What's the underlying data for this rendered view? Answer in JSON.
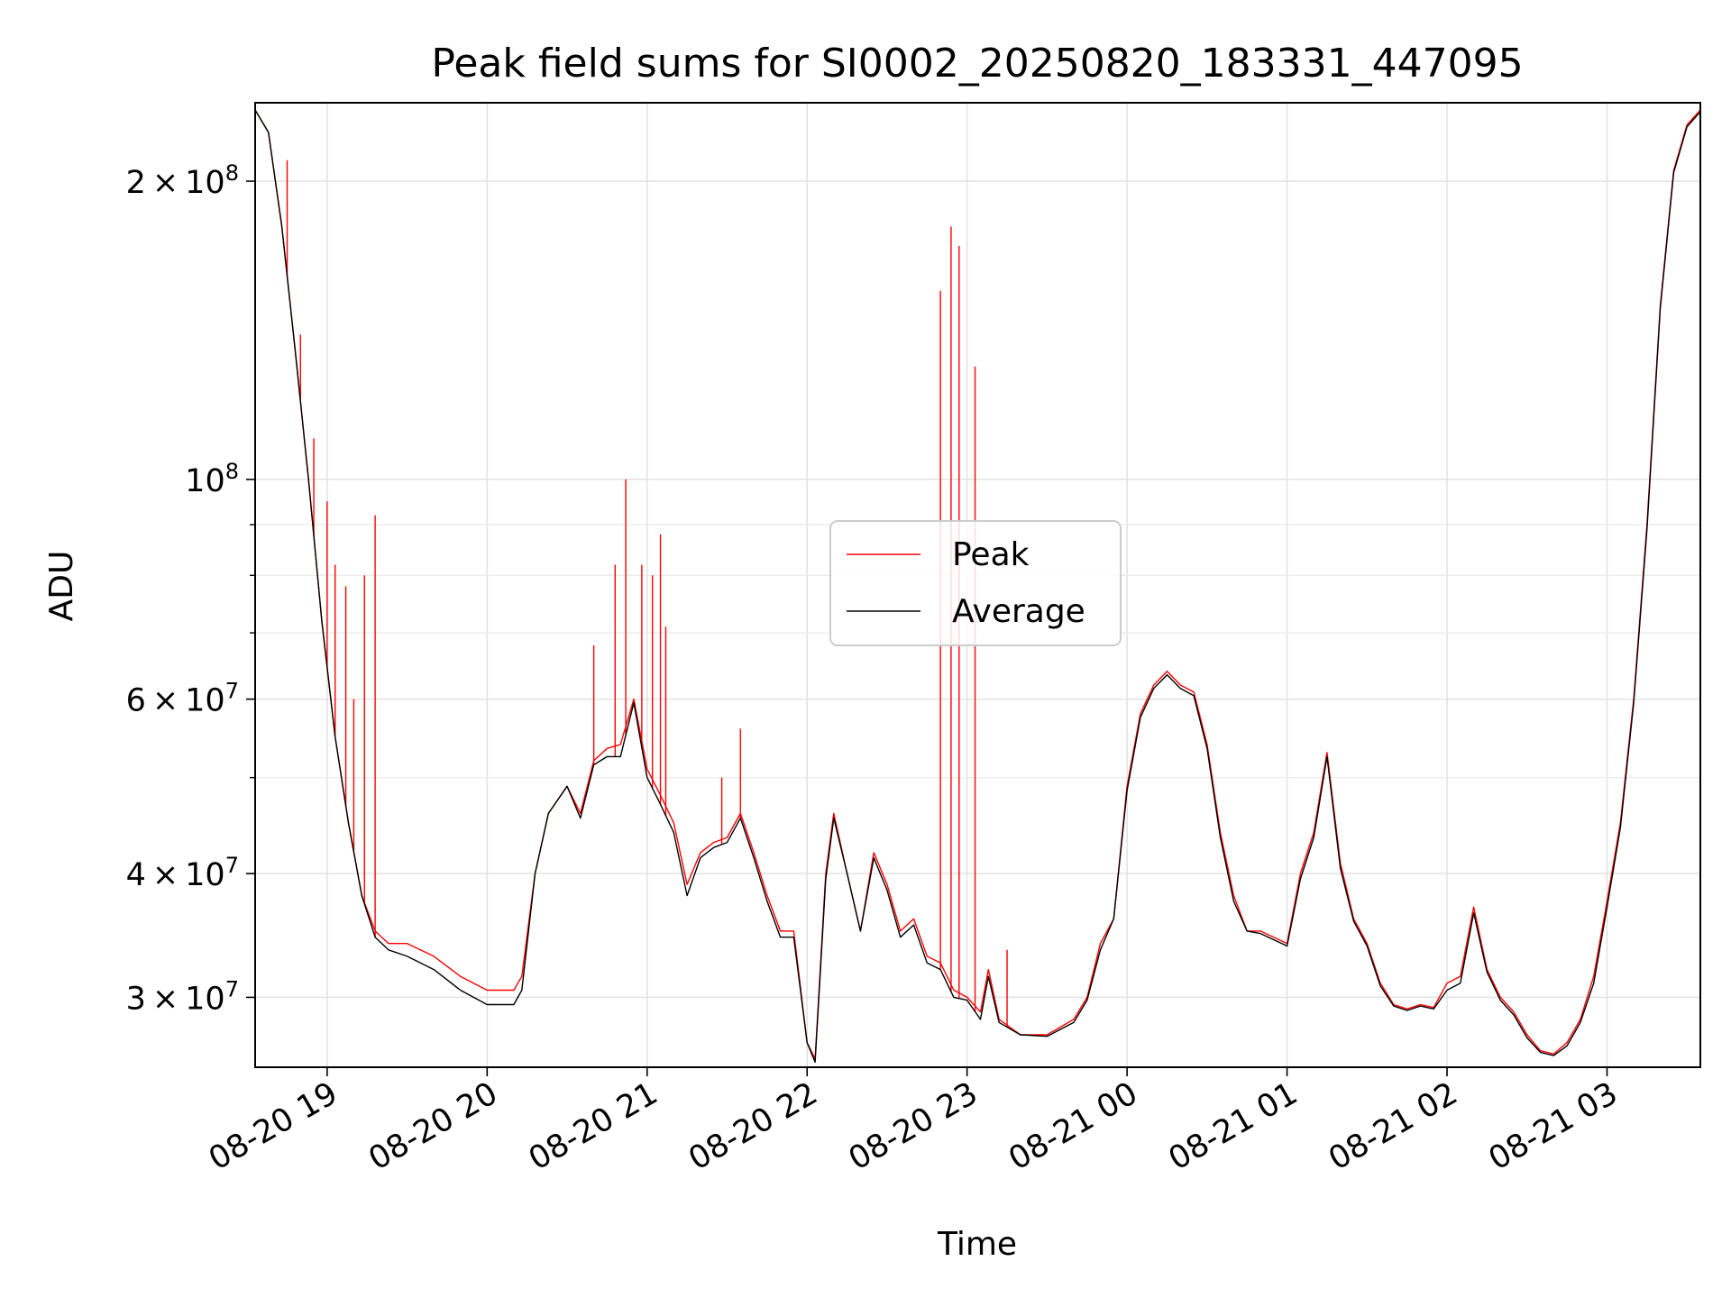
{
  "chart_data": {
    "type": "line",
    "title": "Peak field sums for SI0002_20250820_183331_447095",
    "xlabel": "Time",
    "ylabel": "ADU",
    "yscale": "log",
    "ylim": [
      25500000,
      240000000
    ],
    "xlim": [
      "2025-08-20 18:33",
      "2025-08-21 03:35"
    ],
    "grid": true,
    "legend_position": "center",
    "x_ticks": [
      "2025-08-20 19:00",
      "2025-08-20 20:00",
      "2025-08-20 21:00",
      "2025-08-20 22:00",
      "2025-08-20 23:00",
      "2025-08-21 00:00",
      "2025-08-21 01:00",
      "2025-08-21 02:00",
      "2025-08-21 03:00"
    ],
    "x_tick_labels": [
      "08-20 19",
      "08-20 20",
      "08-20 21",
      "08-20 22",
      "08-20 23",
      "08-21 00",
      "08-21 01",
      "08-21 02",
      "08-21 03"
    ],
    "y_major_ticks": [
      {
        "value": 30000000,
        "mantissa": "3",
        "exponent": "7"
      },
      {
        "value": 40000000,
        "mantissa": "4",
        "exponent": "7"
      },
      {
        "value": 60000000,
        "mantissa": "6",
        "exponent": "7"
      },
      {
        "value": 100000000,
        "mantissa": "",
        "exponent": "8"
      },
      {
        "value": 200000000,
        "mantissa": "2",
        "exponent": "8"
      }
    ],
    "y_minor_ticks": [
      50000000,
      70000000,
      80000000,
      90000000
    ],
    "x": [
      "2025-08-20 18:33",
      "2025-08-20 18:38",
      "2025-08-20 18:43",
      "2025-08-20 18:48",
      "2025-08-20 18:53",
      "2025-08-20 18:58",
      "2025-08-20 19:03",
      "2025-08-20 19:08",
      "2025-08-20 19:13",
      "2025-08-20 19:18",
      "2025-08-20 19:23",
      "2025-08-20 19:30",
      "2025-08-20 19:40",
      "2025-08-20 19:50",
      "2025-08-20 20:00",
      "2025-08-20 20:10",
      "2025-08-20 20:13",
      "2025-08-20 20:18",
      "2025-08-20 20:23",
      "2025-08-20 20:30",
      "2025-08-20 20:35",
      "2025-08-20 20:40",
      "2025-08-20 20:45",
      "2025-08-20 20:50",
      "2025-08-20 20:55",
      "2025-08-20 21:00",
      "2025-08-20 21:05",
      "2025-08-20 21:10",
      "2025-08-20 21:15",
      "2025-08-20 21:20",
      "2025-08-20 21:25",
      "2025-08-20 21:30",
      "2025-08-20 21:35",
      "2025-08-20 21:40",
      "2025-08-20 21:45",
      "2025-08-20 21:50",
      "2025-08-20 21:55",
      "2025-08-20 22:00",
      "2025-08-20 22:03",
      "2025-08-20 22:07",
      "2025-08-20 22:10",
      "2025-08-20 22:15",
      "2025-08-20 22:20",
      "2025-08-20 22:25",
      "2025-08-20 22:30",
      "2025-08-20 22:35",
      "2025-08-20 22:40",
      "2025-08-20 22:45",
      "2025-08-20 22:50",
      "2025-08-20 22:55",
      "2025-08-20 23:00",
      "2025-08-20 23:05",
      "2025-08-20 23:08",
      "2025-08-20 23:12",
      "2025-08-20 23:20",
      "2025-08-20 23:30",
      "2025-08-20 23:40",
      "2025-08-20 23:45",
      "2025-08-20 23:50",
      "2025-08-20 23:55",
      "2025-08-21 00:00",
      "2025-08-21 00:05",
      "2025-08-21 00:10",
      "2025-08-21 00:15",
      "2025-08-21 00:20",
      "2025-08-21 00:25",
      "2025-08-21 00:30",
      "2025-08-21 00:35",
      "2025-08-21 00:40",
      "2025-08-21 00:45",
      "2025-08-21 00:50",
      "2025-08-21 00:55",
      "2025-08-21 01:00",
      "2025-08-21 01:05",
      "2025-08-21 01:10",
      "2025-08-21 01:15",
      "2025-08-21 01:20",
      "2025-08-21 01:25",
      "2025-08-21 01:30",
      "2025-08-21 01:35",
      "2025-08-21 01:40",
      "2025-08-21 01:45",
      "2025-08-21 01:50",
      "2025-08-21 01:55",
      "2025-08-21 02:00",
      "2025-08-21 02:05",
      "2025-08-21 02:10",
      "2025-08-21 02:15",
      "2025-08-21 02:20",
      "2025-08-21 02:25",
      "2025-08-21 02:30",
      "2025-08-21 02:35",
      "2025-08-21 02:40",
      "2025-08-21 02:45",
      "2025-08-21 02:50",
      "2025-08-21 02:55",
      "2025-08-21 03:00",
      "2025-08-21 03:05",
      "2025-08-21 03:10",
      "2025-08-21 03:15",
      "2025-08-21 03:20",
      "2025-08-21 03:25",
      "2025-08-21 03:30",
      "2025-08-21 03:35"
    ],
    "series": [
      {
        "name": "Peak",
        "color": "#ff0000",
        "values": [
          236000000,
          224000000,
          180000000,
          135000000,
          100000000,
          72000000,
          55000000,
          45000000,
          38000000,
          35000000,
          34000000,
          34000000,
          33000000,
          31500000,
          30500000,
          30500000,
          31500000,
          40000000,
          46000000,
          49000000,
          46000000,
          52000000,
          53500000,
          54000000,
          60000000,
          51000000,
          48000000,
          45000000,
          39000000,
          42000000,
          43000000,
          43500000,
          46000000,
          42000000,
          38000000,
          35000000,
          35000000,
          27000000,
          26000000,
          40000000,
          46000000,
          40000000,
          35000000,
          42000000,
          39000000,
          35000000,
          36000000,
          33000000,
          32500000,
          30500000,
          30000000,
          29000000,
          32000000,
          28500000,
          27500000,
          27500000,
          28500000,
          30000000,
          34000000,
          36000000,
          49000000,
          58000000,
          62000000,
          64000000,
          62000000,
          61000000,
          54000000,
          44000000,
          38000000,
          35000000,
          35000000,
          34500000,
          34000000,
          40000000,
          44000000,
          53000000,
          41000000,
          36000000,
          34000000,
          31000000,
          29500000,
          29200000,
          29500000,
          29300000,
          31000000,
          31500000,
          37000000,
          32000000,
          30000000,
          29000000,
          27500000,
          26500000,
          26300000,
          27000000,
          28500000,
          31500000,
          37500000,
          45000000,
          60000000,
          90000000,
          150000000,
          205000000,
          228000000,
          236000000
        ]
      },
      {
        "name": "Average",
        "color": "#000000",
        "values": [
          236000000,
          224000000,
          180000000,
          135000000,
          100000000,
          72000000,
          55000000,
          45000000,
          38000000,
          34500000,
          33500000,
          33000000,
          32000000,
          30500000,
          29500000,
          29500000,
          30500000,
          40000000,
          46000000,
          49000000,
          45500000,
          51500000,
          52500000,
          52500000,
          59500000,
          50000000,
          47000000,
          44000000,
          38000000,
          41500000,
          42500000,
          43000000,
          45500000,
          41500000,
          37500000,
          34500000,
          34500000,
          27000000,
          25800000,
          39500000,
          45500000,
          40000000,
          35000000,
          41500000,
          38500000,
          34500000,
          35500000,
          32500000,
          32000000,
          30000000,
          29800000,
          28500000,
          31500000,
          28300000,
          27500000,
          27400000,
          28300000,
          29800000,
          33500000,
          36000000,
          48500000,
          57500000,
          61500000,
          63500000,
          61500000,
          60500000,
          53500000,
          43500000,
          37500000,
          35000000,
          34800000,
          34300000,
          33800000,
          39500000,
          43500000,
          52500000,
          40500000,
          35800000,
          33800000,
          30800000,
          29400000,
          29100000,
          29400000,
          29200000,
          30500000,
          31000000,
          36500000,
          31800000,
          29800000,
          28800000,
          27300000,
          26400000,
          26200000,
          26800000,
          28300000,
          31000000,
          37000000,
          44500000,
          59500000,
          89000000,
          149000000,
          204000000,
          227000000,
          235000000
        ]
      }
    ],
    "peak_spikes": [
      {
        "x": "2025-08-20 18:45",
        "y": 210000000
      },
      {
        "x": "2025-08-20 18:50",
        "y": 140000000
      },
      {
        "x": "2025-08-20 18:55",
        "y": 110000000
      },
      {
        "x": "2025-08-20 19:00",
        "y": 95000000
      },
      {
        "x": "2025-08-20 19:03",
        "y": 82000000
      },
      {
        "x": "2025-08-20 19:07",
        "y": 78000000
      },
      {
        "x": "2025-08-20 19:10",
        "y": 60000000
      },
      {
        "x": "2025-08-20 19:14",
        "y": 80000000
      },
      {
        "x": "2025-08-20 19:18",
        "y": 92000000
      },
      {
        "x": "2025-08-20 20:40",
        "y": 68000000
      },
      {
        "x": "2025-08-20 20:48",
        "y": 82000000
      },
      {
        "x": "2025-08-20 20:52",
        "y": 100000000
      },
      {
        "x": "2025-08-20 20:58",
        "y": 82000000
      },
      {
        "x": "2025-08-20 21:02",
        "y": 80000000
      },
      {
        "x": "2025-08-20 21:05",
        "y": 88000000
      },
      {
        "x": "2025-08-20 21:07",
        "y": 71000000
      },
      {
        "x": "2025-08-20 21:28",
        "y": 50000000
      },
      {
        "x": "2025-08-20 21:35",
        "y": 56000000
      },
      {
        "x": "2025-08-20 22:50",
        "y": 155000000
      },
      {
        "x": "2025-08-20 22:54",
        "y": 180000000
      },
      {
        "x": "2025-08-20 22:57",
        "y": 172000000
      },
      {
        "x": "2025-08-20 23:03",
        "y": 130000000
      },
      {
        "x": "2025-08-20 23:15",
        "y": 33500000
      }
    ]
  }
}
